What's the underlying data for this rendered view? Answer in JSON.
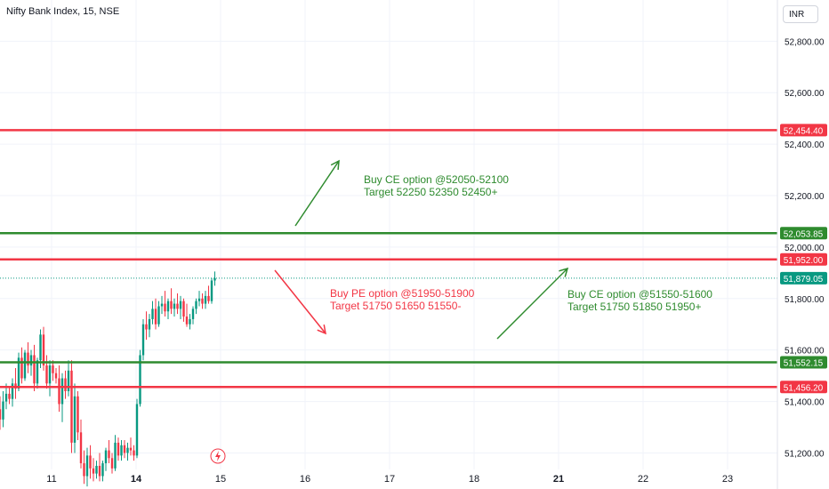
{
  "header": {
    "title": "Nifty Bank Index, 15, NSE",
    "currency": "INR"
  },
  "colors": {
    "bull": "#089981",
    "bear": "#f23645",
    "red_line": "#f23645",
    "green_line": "#2e8b2e",
    "price_tag": "#089981"
  },
  "chart_data": {
    "type": "candlestick",
    "y_axis": {
      "min": 51060,
      "max": 52960,
      "tick_labels": [
        "52,800.00",
        "52,600.00",
        "52,400.00",
        "52,200.00",
        "52,000.00",
        "51,800.00",
        "51,600.00",
        "51,400.00",
        "51,200.00"
      ],
      "tick_values": [
        52800,
        52600,
        52400,
        52200,
        52000,
        51800,
        51600,
        51400,
        51200
      ]
    },
    "x_axis": {
      "tick_labels": [
        {
          "label": "11",
          "bold": false
        },
        {
          "label": "14",
          "bold": true
        },
        {
          "label": "15",
          "bold": false
        },
        {
          "label": "16",
          "bold": false
        },
        {
          "label": "17",
          "bold": false
        },
        {
          "label": "18",
          "bold": false
        },
        {
          "label": "21",
          "bold": true
        },
        {
          "label": "22",
          "bold": false
        },
        {
          "label": "23",
          "bold": false
        }
      ]
    },
    "horizontal_levels": [
      {
        "value": 52454.4,
        "label": "52,454.40",
        "color": "red"
      },
      {
        "value": 52053.85,
        "label": "52,053.85",
        "color": "green"
      },
      {
        "value": 51952.0,
        "label": "51,952.00",
        "color": "red"
      },
      {
        "value": 51552.15,
        "label": "51,552.15",
        "color": "green"
      },
      {
        "value": 51456.2,
        "label": "51,456.20",
        "color": "red"
      }
    ],
    "last_price": {
      "value": 51879.05,
      "label": "51,879.05"
    },
    "annotations": [
      {
        "lines": [
          "Buy CE option @52050-52100",
          "Target 52250 52350 52450+"
        ],
        "color": "green"
      },
      {
        "lines": [
          "Buy PE option @51950-51900",
          "Target 51750 51650 51550-"
        ],
        "color": "red"
      },
      {
        "lines": [
          "Buy CE option @51550-51600",
          "Target 51750 51850 51950+"
        ],
        "color": "green"
      }
    ],
    "candles": [
      [
        51370,
        51420,
        51290,
        51330
      ],
      [
        51330,
        51440,
        51300,
        51400
      ],
      [
        51400,
        51470,
        51370,
        51430
      ],
      [
        51430,
        51460,
        51390,
        51410
      ],
      [
        51410,
        51490,
        51380,
        51470
      ],
      [
        51470,
        51530,
        51410,
        51450
      ],
      [
        51450,
        51590,
        51440,
        51570
      ],
      [
        51570,
        51610,
        51470,
        51490
      ],
      [
        51490,
        51600,
        51480,
        51590
      ],
      [
        51590,
        51630,
        51510,
        51540
      ],
      [
        51540,
        51600,
        51500,
        51580
      ],
      [
        51580,
        51620,
        51440,
        51470
      ],
      [
        51470,
        51570,
        51450,
        51560
      ],
      [
        51560,
        51680,
        51530,
        51660
      ],
      [
        51660,
        51690,
        51520,
        51540
      ],
      [
        51540,
        51580,
        51450,
        51470
      ],
      [
        51470,
        51560,
        51420,
        51540
      ],
      [
        51540,
        51560,
        51480,
        51510
      ],
      [
        51510,
        51530,
        51470,
        51490
      ],
      [
        51490,
        51540,
        51360,
        51390
      ],
      [
        51390,
        51510,
        51320,
        51490
      ],
      [
        51490,
        51520,
        51410,
        51440
      ],
      [
        51440,
        51560,
        51420,
        51520
      ],
      [
        51520,
        51560,
        51200,
        51240
      ],
      [
        51240,
        51470,
        51200,
        51420
      ],
      [
        51420,
        51440,
        51250,
        51280
      ],
      [
        51280,
        51330,
        51140,
        51160
      ],
      [
        51160,
        51210,
        51080,
        51110
      ],
      [
        51110,
        51220,
        51070,
        51190
      ],
      [
        51190,
        51230,
        51100,
        51140
      ],
      [
        51140,
        51180,
        51090,
        51120
      ],
      [
        51120,
        51170,
        51100,
        51150
      ],
      [
        51150,
        51200,
        51090,
        51110
      ],
      [
        51110,
        51170,
        51090,
        51160
      ],
      [
        51160,
        51220,
        51130,
        51210
      ],
      [
        51210,
        51250,
        51160,
        51180
      ],
      [
        51180,
        51200,
        51120,
        51140
      ],
      [
        51140,
        51270,
        51130,
        51240
      ],
      [
        51240,
        51260,
        51170,
        51190
      ],
      [
        51190,
        51250,
        51170,
        51230
      ],
      [
        51230,
        51250,
        51180,
        51200
      ],
      [
        51200,
        51240,
        51170,
        51220
      ],
      [
        51220,
        51260,
        51190,
        51210
      ],
      [
        51210,
        51230,
        51170,
        51190
      ],
      [
        51190,
        51410,
        51180,
        51390
      ],
      [
        51390,
        51600,
        51380,
        51580
      ],
      [
        51580,
        51720,
        51560,
        51700
      ],
      [
        51700,
        51750,
        51640,
        51680
      ],
      [
        51680,
        51740,
        51650,
        51720
      ],
      [
        51720,
        51790,
        51700,
        51760
      ],
      [
        51760,
        51800,
        51680,
        51700
      ],
      [
        51700,
        51790,
        51690,
        51770
      ],
      [
        51770,
        51810,
        51740,
        51780
      ],
      [
        51780,
        51830,
        51730,
        51750
      ],
      [
        51750,
        51800,
        51720,
        51790
      ],
      [
        51790,
        51840,
        51740,
        51760
      ],
      [
        51760,
        51800,
        51730,
        51780
      ],
      [
        51780,
        51820,
        51740,
        51760
      ],
      [
        51760,
        51810,
        51720,
        51790
      ],
      [
        51790,
        51800,
        51710,
        51730
      ],
      [
        51730,
        51780,
        51690,
        51700
      ],
      [
        51700,
        51740,
        51680,
        51720
      ],
      [
        51720,
        51770,
        51700,
        51760
      ],
      [
        51760,
        51800,
        51740,
        51790
      ],
      [
        51790,
        51830,
        51770,
        51800
      ],
      [
        51800,
        51820,
        51760,
        51780
      ],
      [
        51780,
        51830,
        51760,
        51810
      ],
      [
        51810,
        51850,
        51780,
        51790
      ],
      [
        51790,
        51880,
        51780,
        51870
      ],
      [
        51870,
        51905,
        51850,
        51879
      ]
    ]
  }
}
